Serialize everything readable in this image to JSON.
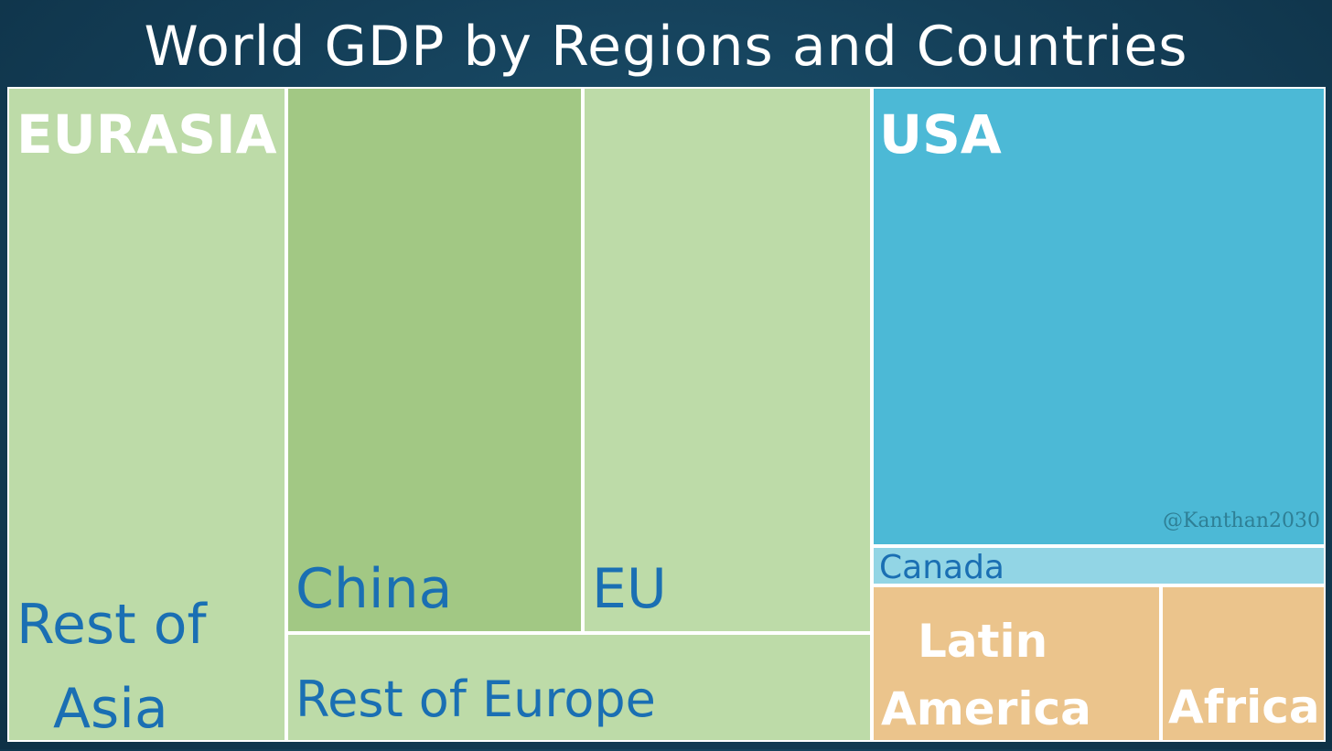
{
  "chart_data": {
    "type": "treemap",
    "title": "World GDP by Regions and Countries",
    "regions": [
      {
        "name": "EURASIA",
        "items": [
          {
            "label": "Rest of Asia",
            "lines": [
              "Rest of",
              "Asia"
            ],
            "share": 0.1455,
            "color": "#bddba8"
          },
          {
            "label": "China",
            "lines": [
              "China"
            ],
            "share": 0.1405,
            "color": "#a2c884"
          },
          {
            "label": "EU",
            "lines": [
              "EU"
            ],
            "share": 0.1365,
            "color": "#bddba8"
          },
          {
            "label": "Rest of Europe",
            "lines": [
              "Rest of Europe"
            ],
            "share": 0.0515,
            "color": "#bddba8"
          }
        ]
      },
      {
        "name": "USA",
        "items": [
          {
            "label": "USA",
            "lines": [],
            "share": 0.239,
            "color": "#4cb9d6"
          },
          {
            "label": "Canada",
            "lines": [
              "Canada"
            ],
            "share": 0.018,
            "color": "#92d5e5"
          }
        ]
      },
      {
        "name": "",
        "items": [
          {
            "label": "Latin America",
            "lines": [
              "Latin",
              "America"
            ],
            "share": 0.0495,
            "color": "#ebc48c"
          },
          {
            "label": "Africa",
            "lines": [
              "Africa"
            ],
            "share": 0.0315,
            "color": "#ebc48c"
          }
        ]
      }
    ]
  },
  "watermark": "@Kanthan2030"
}
